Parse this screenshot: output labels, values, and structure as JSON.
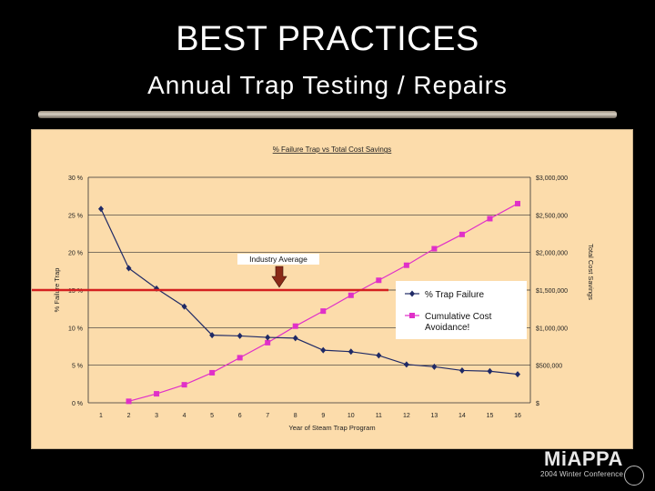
{
  "slide": {
    "title": "BEST PRACTICES",
    "subtitle": "Annual Trap Testing / Repairs"
  },
  "logo": {
    "name": "MiAPPA",
    "caption": "2004 Winter Conference"
  },
  "colors": {
    "background": "#000000",
    "plot_area": "#fcdcab",
    "failure_series": "#1f2a66",
    "savings_series": "#e030c8",
    "industry_line": "#d42020",
    "annotation_arrow": "#8a2a18"
  },
  "chart_data": {
    "type": "line",
    "title": "% Failure Trap vs Total Cost Savings",
    "xlabel": "Year of Steam Trap Program",
    "ylabel": "% Failure Trap",
    "y2label": "Total Cost Savings",
    "x": [
      1,
      2,
      3,
      4,
      5,
      6,
      7,
      8,
      9,
      10,
      11,
      12,
      13,
      14,
      15,
      16
    ],
    "x_ticks": [
      "1",
      "2",
      "3",
      "4",
      "5",
      "6",
      "7",
      "8",
      "9",
      "10",
      "11",
      "12",
      "13",
      "14",
      "15",
      "16"
    ],
    "ylim": [
      0,
      30
    ],
    "y_ticks": [
      "0 %",
      "5 %",
      "10 %",
      "15 %",
      "20 %",
      "25 %",
      "30 %"
    ],
    "y2lim": [
      0,
      3000000
    ],
    "y2_ticks": [
      "$",
      "$500,000",
      "$1,000,000",
      "$1,500,000",
      "$2,000,000",
      "$2,500,000",
      "$3,000,000"
    ],
    "grid": true,
    "legend_position": "right",
    "series": [
      {
        "name": "% Trap Failure",
        "axis": "left",
        "marker": "diamond",
        "x": [
          1,
          2,
          3,
          4,
          5,
          6,
          7,
          8,
          9,
          10,
          11,
          12,
          13,
          14,
          15,
          16
        ],
        "values": [
          25.8,
          17.9,
          15.2,
          12.8,
          9.0,
          8.9,
          8.7,
          8.6,
          7.0,
          6.8,
          6.3,
          5.1,
          4.8,
          4.3,
          4.2,
          3.8
        ]
      },
      {
        "name": "Cumulative Cost Avoidance!",
        "axis": "right",
        "marker": "square",
        "x": [
          2,
          3,
          4,
          5,
          6,
          7,
          8,
          9,
          10,
          11,
          12,
          13,
          14,
          15,
          16
        ],
        "values": [
          20000,
          120000,
          240000,
          400000,
          600000,
          800000,
          1020000,
          1220000,
          1430000,
          1630000,
          1830000,
          2050000,
          2240000,
          2450000,
          2650000
        ]
      }
    ],
    "reference_line": {
      "label": "Industry Average",
      "value": 15
    }
  }
}
